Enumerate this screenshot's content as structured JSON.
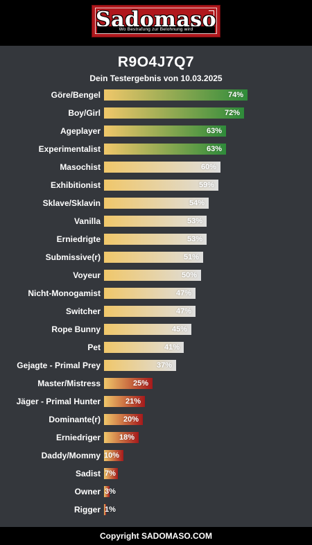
{
  "header": {
    "logo_title": "Sadomaso",
    "logo_tagline": "Wo Bestrafung zur Belohnung wird"
  },
  "result": {
    "code": "R9O4J7Q7",
    "subtitle": "Dein Testergebnis von 10.03.2025"
  },
  "colors": {
    "background": "#34373c",
    "bar_start": "#f0c76a",
    "high_end": "#2e8b3a",
    "mid_end": "#dedede",
    "low_end": "#a6191b"
  },
  "chart_data": {
    "type": "bar",
    "orientation": "horizontal",
    "xlim": [
      0,
      100
    ],
    "categories": [
      "Göre/Bengel",
      "Boy/Girl",
      "Ageplayer",
      "Experimentalist",
      "Masochist",
      "Exhibitionist",
      "Sklave/Sklavin",
      "Vanilla",
      "Erniedrigte",
      "Submissive(r)",
      "Voyeur",
      "Nicht-Monogamist",
      "Switcher",
      "Rope Bunny",
      "Pet",
      "Gejagte - Primal Prey",
      "Master/Mistress",
      "Jäger - Primal Hunter",
      "Dominante(r)",
      "Erniedriger",
      "Daddy/Mommy",
      "Sadist",
      "Owner",
      "Rigger"
    ],
    "values": [
      74,
      72,
      63,
      63,
      60,
      59,
      54,
      53,
      53,
      51,
      50,
      47,
      47,
      45,
      41,
      37,
      25,
      21,
      20,
      18,
      10,
      7,
      3,
      1
    ],
    "value_labels": [
      "74%",
      "72%",
      "63%",
      "63%",
      "60%",
      "59%",
      "54%",
      "53%",
      "53%",
      "51%",
      "50%",
      "47%",
      "47%",
      "45%",
      "41%",
      "37%",
      "25%",
      "21%",
      "20%",
      "18%",
      "10%",
      "7%",
      "3%",
      "1%"
    ]
  },
  "footer": {
    "copyright": "Copyright SADOMASO.COM"
  }
}
